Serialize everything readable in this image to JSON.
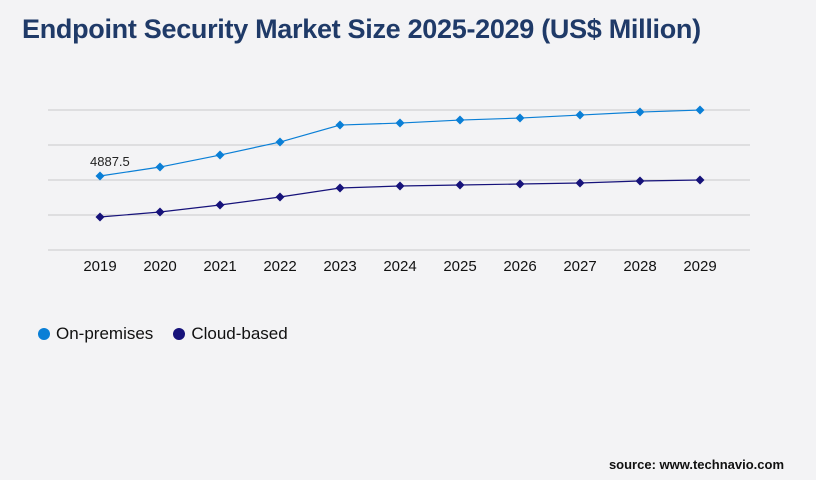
{
  "chart_data": {
    "type": "line",
    "title": "Endpoint Security Market Size 2025-2029 (US$ Million)",
    "categories": [
      "2019",
      "2020",
      "2021",
      "2022",
      "2023",
      "2024",
      "2025",
      "2026",
      "2027",
      "2028",
      "2029"
    ],
    "series": [
      {
        "name": "On-premises",
        "color": "#0a7fd6",
        "values": [
          4887.5,
          5482,
          6275,
          7133,
          8256,
          8388,
          8586,
          8718,
          8916,
          9115,
          9247
        ]
      },
      {
        "name": "Cloud-based",
        "color": "#16127a",
        "values": [
          2180,
          2510,
          2972,
          3501,
          4095,
          4227,
          4293,
          4359,
          4425,
          4557,
          4623
        ]
      }
    ],
    "data_labels": [
      {
        "series": 0,
        "index": 0,
        "text": "4887.5"
      }
    ],
    "ylim": [
      0,
      9250
    ],
    "grid": true,
    "legend": "bottom-left",
    "marker": "diamond"
  },
  "source": "source: www.technavio.com"
}
